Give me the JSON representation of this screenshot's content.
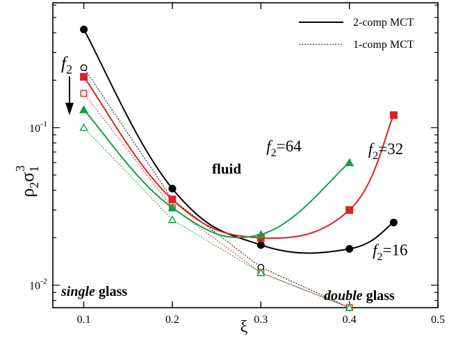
{
  "chart_data": {
    "type": "line",
    "xlabel": "ξ",
    "ylabel": {
      "rho": "ρ",
      "sub2": "2",
      "sigma": "σ",
      "sub1": "1",
      "sup3": "3"
    },
    "xlim": [
      0.065,
      0.5
    ],
    "ylim": [
      0.0072,
      0.62
    ],
    "yscale": "log",
    "x_ticks": [
      {
        "value": 0.1,
        "label": "0.1"
      },
      {
        "value": 0.2,
        "label": "0.2"
      },
      {
        "value": 0.3,
        "label": "0.3"
      },
      {
        "value": 0.4,
        "label": "0.4"
      },
      {
        "value": 0.5,
        "label": "0.5"
      }
    ],
    "y_major_ticks": [
      {
        "value": 0.01,
        "base": "10",
        "exp": "-2"
      },
      {
        "value": 0.1,
        "base": "10",
        "exp": "-1"
      }
    ],
    "legend": {
      "position": "top-right",
      "entries": [
        {
          "label": "2-comp MCT",
          "style": "solid"
        },
        {
          "label": "1-comp MCT",
          "style": "dotted"
        }
      ]
    },
    "series": [
      {
        "group": "f2=16",
        "model": "2-comp",
        "color": "#000000",
        "marker": "circle",
        "filled": true,
        "style": "solid",
        "x": [
          0.1,
          0.2,
          0.3,
          0.4,
          0.45
        ],
        "y": [
          0.42,
          0.041,
          0.018,
          0.017,
          0.025
        ]
      },
      {
        "group": "f2=32",
        "model": "2-comp",
        "color": "#dd2222",
        "marker": "square",
        "filled": true,
        "style": "solid",
        "x": [
          0.1,
          0.2,
          0.3,
          0.4,
          0.45
        ],
        "y": [
          0.21,
          0.035,
          0.02,
          0.03,
          0.12
        ]
      },
      {
        "group": "f2=64",
        "model": "2-comp",
        "color": "#11a040",
        "marker": "triangle",
        "filled": true,
        "style": "solid",
        "x": [
          0.1,
          0.2,
          0.3,
          0.4
        ],
        "y": [
          0.13,
          0.031,
          0.021,
          0.06
        ]
      },
      {
        "group": "f2=16",
        "model": "1-comp",
        "color": "#000000",
        "marker": "circle",
        "filled": false,
        "style": "dotted",
        "x": [
          0.1,
          0.2,
          0.3,
          0.4
        ],
        "y": [
          0.24,
          0.035,
          0.013,
          0.0072
        ]
      },
      {
        "group": "f2=32",
        "model": "1-comp",
        "color": "#dd2222",
        "marker": "square",
        "filled": false,
        "style": "dotted",
        "x": [
          0.1,
          0.2,
          0.3,
          0.4
        ],
        "y": [
          0.165,
          0.031,
          0.012,
          0.0072
        ]
      },
      {
        "group": "f2=64",
        "model": "1-comp",
        "color": "#11a040",
        "marker": "triangle",
        "filled": false,
        "style": "dotted",
        "x": [
          0.1,
          0.2,
          0.3,
          0.4
        ],
        "y": [
          0.1,
          0.026,
          0.012,
          0.0072
        ]
      }
    ],
    "curve_labels": [
      {
        "italic": "f",
        "sub": "2",
        "rest": "=64",
        "anchor_x": 0.3,
        "anchor_y": 0.075
      },
      {
        "italic": "f",
        "sub": "2",
        "rest": "=32",
        "anchor_x": 0.415,
        "anchor_y": 0.072
      },
      {
        "italic": "f",
        "sub": "2",
        "rest": "=16",
        "anchor_x": 0.42,
        "anchor_y": 0.0165
      }
    ],
    "annotations": {
      "fluid": "fluid",
      "single_glass": {
        "italic": "single",
        "bold": " glass"
      },
      "double_glass": {
        "italic": "double",
        "bold": " glass"
      },
      "f2_arrow": {
        "italic": "f",
        "sub": "2"
      }
    }
  }
}
